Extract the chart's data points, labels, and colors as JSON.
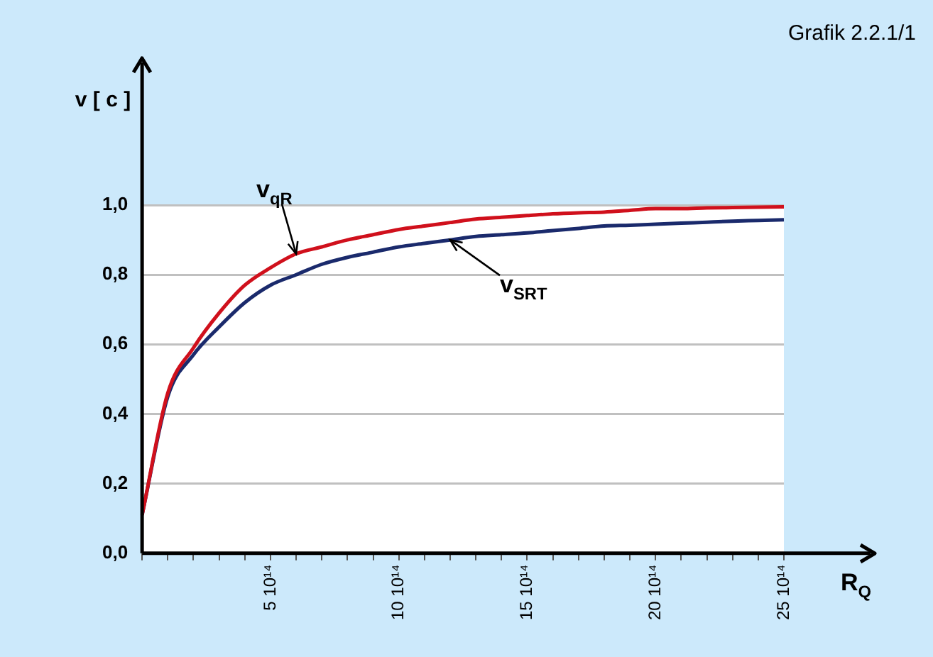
{
  "chart_data": {
    "type": "line",
    "xlabel": "R$_{Q}$",
    "ylabel": "v [ c ]",
    "annotations": [
      "Grafik 2.2.1/1"
    ],
    "categories": [
      null,
      null,
      null,
      null,
      null,
      "5 10¹⁴",
      null,
      null,
      null,
      null,
      "10 10¹⁴",
      null,
      null,
      null,
      null,
      "15 10¹⁴",
      null,
      null,
      null,
      null,
      "20 10¹⁴",
      null,
      null,
      null,
      null,
      "25 10¹⁴"
    ],
    "ylim": [
      0,
      1.41
    ],
    "yticks": [
      {
        "value": 0,
        "label": "0,0"
      },
      {
        "value": 0.2,
        "label": "0,2"
      },
      {
        "value": 0.4,
        "label": "0,4"
      },
      {
        "value": 0.6,
        "label": "0,6"
      },
      {
        "value": 0.8,
        "label": "0,8"
      },
      {
        "value": 1,
        "label": "1,0"
      }
    ],
    "grid": "y",
    "legend": false,
    "marker": "none",
    "line_style": "solid",
    "series": [
      {
        "name": "v$_{qR}$",
        "color": "#d0101c",
        "values": [
          0.11,
          0.46,
          0.59,
          0.69,
          0.77,
          0.82,
          0.86,
          0.88,
          0.9,
          0.915,
          0.93,
          0.94,
          0.95,
          0.96,
          0.965,
          0.97,
          0.975,
          0.978,
          0.98,
          0.985,
          0.99,
          0.99,
          0.992,
          0.993,
          0.994,
          0.995
        ]
      },
      {
        "name": "v$_{SRT}$",
        "color": "#1a2a6c",
        "values": [
          0.11,
          0.45,
          0.57,
          0.65,
          0.72,
          0.77,
          0.8,
          0.83,
          0.85,
          0.865,
          0.88,
          0.89,
          0.9,
          0.91,
          0.915,
          0.92,
          0.927,
          0.933,
          0.94,
          0.942,
          0.945,
          0.948,
          0.951,
          0.954,
          0.956,
          0.958
        ]
      }
    ]
  }
}
